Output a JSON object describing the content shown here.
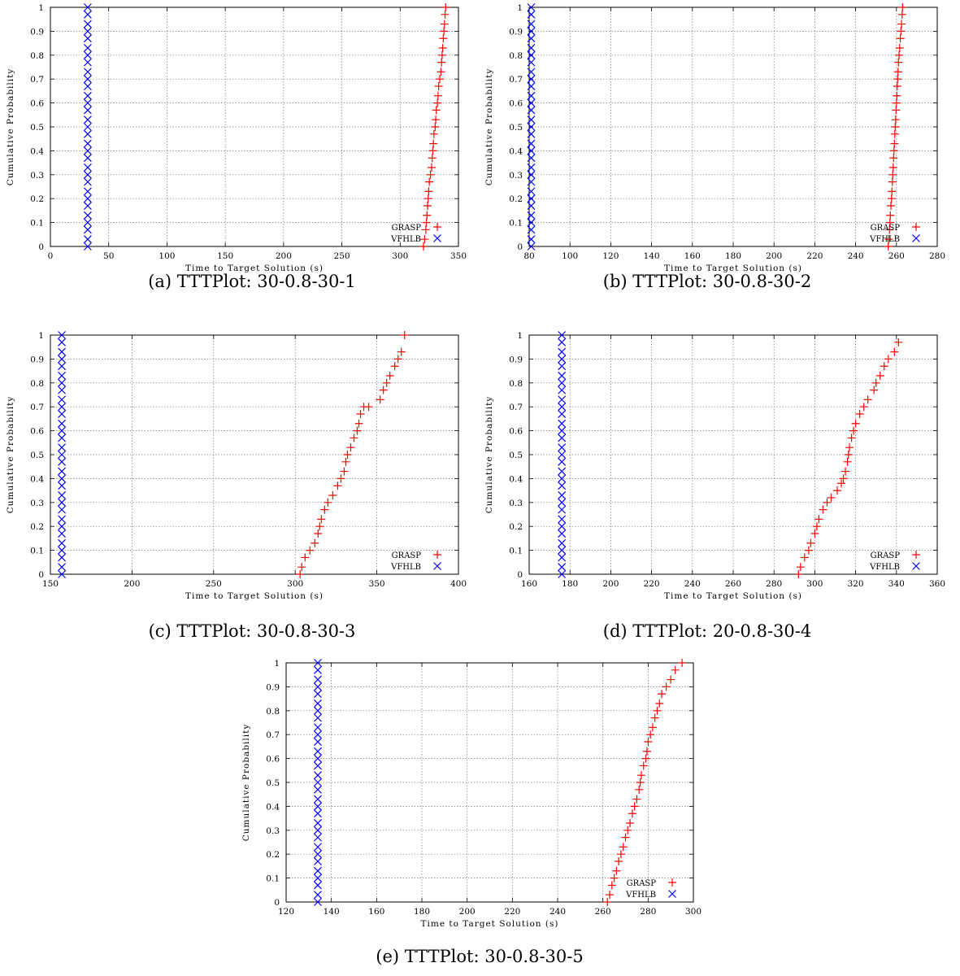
{
  "chart_data": [
    {
      "type": "scatter",
      "caption": "(a) TTTPlot: 30-0.8-30-1",
      "xlabel": "Time to Target Solution (s)",
      "ylabel": "Cumulative Probability",
      "xlim": [
        0,
        350
      ],
      "ylim": [
        0,
        1
      ],
      "xticks": [
        0,
        50,
        100,
        150,
        200,
        250,
        300,
        350
      ],
      "yticks": [
        0,
        0.1,
        0.2,
        0.3,
        0.4,
        0.5,
        0.6,
        0.7,
        0.8,
        0.9,
        1
      ],
      "grid": true,
      "legend": "bottom-right",
      "series": [
        {
          "name": "GRASP",
          "color": "#ff0000",
          "marker": "plus",
          "x": [
            320,
            321,
            322,
            322.5,
            323,
            323.5,
            324,
            324.5,
            325,
            326,
            327,
            327.5,
            328,
            328.5,
            329,
            330,
            330.5,
            331,
            332,
            332.5,
            333,
            334,
            335,
            335.5,
            336,
            336.5,
            337,
            337.5,
            338,
            338.5,
            339
          ],
          "y": [
            0.0,
            0.03,
            0.07,
            0.1,
            0.13,
            0.17,
            0.2,
            0.23,
            0.27,
            0.3,
            0.33,
            0.37,
            0.4,
            0.43,
            0.47,
            0.5,
            0.53,
            0.57,
            0.6,
            0.63,
            0.67,
            0.7,
            0.73,
            0.77,
            0.8,
            0.83,
            0.87,
            0.9,
            0.93,
            0.97,
            1.0
          ]
        },
        {
          "name": "VFHLB",
          "color": "#0000ff",
          "marker": "cross",
          "x": [
            32,
            32,
            32,
            32,
            32,
            32,
            32,
            32,
            32,
            32,
            32,
            32,
            32,
            32,
            32,
            32,
            32,
            32,
            32,
            32,
            32,
            32,
            32,
            32,
            32,
            32,
            32,
            32,
            32,
            32,
            32
          ],
          "y": [
            0.0,
            0.03,
            0.07,
            0.1,
            0.13,
            0.17,
            0.2,
            0.23,
            0.27,
            0.3,
            0.33,
            0.37,
            0.4,
            0.43,
            0.47,
            0.5,
            0.53,
            0.57,
            0.6,
            0.63,
            0.67,
            0.7,
            0.73,
            0.77,
            0.8,
            0.83,
            0.87,
            0.9,
            0.93,
            0.97,
            1.0
          ]
        }
      ]
    },
    {
      "type": "scatter",
      "caption": "(b) TTTPlot: 30-0.8-30-2",
      "xlabel": "Time to Target Solution (s)",
      "ylabel": "Cumulative Probability",
      "xlim": [
        80,
        280
      ],
      "ylim": [
        0,
        1
      ],
      "xticks": [
        80,
        100,
        120,
        140,
        160,
        180,
        200,
        220,
        240,
        260,
        280
      ],
      "yticks": [
        0,
        0.1,
        0.2,
        0.3,
        0.4,
        0.5,
        0.6,
        0.7,
        0.8,
        0.9,
        1
      ],
      "grid": true,
      "legend": "bottom-right",
      "series": [
        {
          "name": "GRASP",
          "color": "#ff0000",
          "marker": "plus",
          "x": [
            256,
            256.3,
            256.6,
            256.8,
            257,
            257.3,
            257.6,
            257.8,
            258,
            258.2,
            258.4,
            258.6,
            258.8,
            259,
            259.2,
            259.4,
            259.6,
            259.8,
            260,
            260.2,
            260.4,
            260.6,
            260.8,
            261,
            261.3,
            261.6,
            261.9,
            262.2,
            262.5,
            262.8,
            263
          ],
          "y": [
            0.0,
            0.03,
            0.07,
            0.1,
            0.13,
            0.17,
            0.2,
            0.23,
            0.27,
            0.3,
            0.33,
            0.37,
            0.4,
            0.43,
            0.47,
            0.5,
            0.53,
            0.57,
            0.6,
            0.63,
            0.67,
            0.7,
            0.73,
            0.77,
            0.8,
            0.83,
            0.87,
            0.9,
            0.93,
            0.97,
            1.0
          ]
        },
        {
          "name": "VFHLB",
          "color": "#0000ff",
          "marker": "cross",
          "x": [
            81,
            81,
            81,
            81,
            81,
            81,
            81,
            81,
            81,
            81,
            81,
            81,
            81,
            81,
            81,
            81,
            81,
            81,
            81,
            81,
            81,
            81,
            81,
            81,
            81,
            81,
            81,
            81,
            81,
            81,
            81
          ],
          "y": [
            0.0,
            0.03,
            0.07,
            0.1,
            0.13,
            0.17,
            0.2,
            0.23,
            0.27,
            0.3,
            0.33,
            0.37,
            0.4,
            0.43,
            0.47,
            0.5,
            0.53,
            0.57,
            0.6,
            0.63,
            0.67,
            0.7,
            0.73,
            0.77,
            0.8,
            0.83,
            0.87,
            0.9,
            0.93,
            0.97,
            1.0
          ]
        }
      ]
    },
    {
      "type": "scatter",
      "caption": "(c) TTTPlot: 30-0.8-30-3",
      "xlabel": "Time to Target Solution (s)",
      "ylabel": "Cumulative Probability",
      "xlim": [
        150,
        400
      ],
      "ylim": [
        0,
        1
      ],
      "xticks": [
        150,
        200,
        250,
        300,
        350,
        400
      ],
      "yticks": [
        0,
        0.1,
        0.2,
        0.3,
        0.4,
        0.5,
        0.6,
        0.7,
        0.8,
        0.9,
        1
      ],
      "grid": true,
      "legend": "bottom-right",
      "series": [
        {
          "name": "GRASP",
          "color": "#ff0000",
          "marker": "plus",
          "x": [
            303,
            304,
            306,
            309,
            312,
            314,
            315,
            316,
            318,
            320,
            323,
            326,
            328,
            330,
            331,
            332,
            334,
            336,
            338,
            339,
            340,
            342,
            345,
            352,
            354,
            356,
            358,
            361,
            363,
            365,
            367
          ],
          "y": [
            0.0,
            0.03,
            0.07,
            0.1,
            0.13,
            0.17,
            0.2,
            0.23,
            0.27,
            0.3,
            0.33,
            0.37,
            0.4,
            0.43,
            0.47,
            0.5,
            0.53,
            0.57,
            0.6,
            0.63,
            0.67,
            0.7,
            0.7,
            0.73,
            0.77,
            0.8,
            0.83,
            0.87,
            0.9,
            0.93,
            1.0
          ]
        },
        {
          "name": "VFHLB",
          "color": "#0000ff",
          "marker": "cross",
          "x": [
            157,
            157,
            157,
            157,
            157,
            157,
            157,
            157,
            157,
            157,
            157,
            157,
            157,
            157,
            157,
            157,
            157,
            157,
            157,
            157,
            157,
            157,
            157,
            157,
            157,
            157,
            157,
            157,
            157,
            157,
            157
          ],
          "y": [
            0.0,
            0.03,
            0.07,
            0.1,
            0.13,
            0.17,
            0.2,
            0.23,
            0.27,
            0.3,
            0.33,
            0.37,
            0.4,
            0.43,
            0.47,
            0.5,
            0.53,
            0.57,
            0.6,
            0.63,
            0.67,
            0.7,
            0.73,
            0.77,
            0.8,
            0.83,
            0.87,
            0.9,
            0.93,
            0.97,
            1.0
          ]
        }
      ]
    },
    {
      "type": "scatter",
      "caption": "(d) TTTPlot: 20-0.8-30-4",
      "xlabel": "Time to Target Solution (s)",
      "ylabel": "Cumulative Probability",
      "xlim": [
        160,
        360
      ],
      "ylim": [
        0,
        1
      ],
      "xticks": [
        160,
        180,
        200,
        220,
        240,
        260,
        280,
        300,
        320,
        340,
        360
      ],
      "yticks": [
        0,
        0.1,
        0.2,
        0.3,
        0.4,
        0.5,
        0.6,
        0.7,
        0.8,
        0.9,
        1
      ],
      "grid": true,
      "legend": "bottom-right",
      "series": [
        {
          "name": "GRASP",
          "color": "#ff0000",
          "marker": "plus",
          "x": [
            292,
            293,
            295,
            297,
            298,
            300,
            301,
            302,
            304,
            306,
            308,
            311,
            313,
            314,
            315,
            316,
            316.5,
            317,
            318,
            319,
            320,
            322,
            324,
            326,
            329,
            330,
            332,
            334,
            336,
            339,
            341
          ],
          "y": [
            0.0,
            0.03,
            0.07,
            0.1,
            0.13,
            0.17,
            0.2,
            0.23,
            0.27,
            0.3,
            0.32,
            0.35,
            0.38,
            0.4,
            0.43,
            0.47,
            0.5,
            0.53,
            0.57,
            0.6,
            0.63,
            0.67,
            0.7,
            0.73,
            0.77,
            0.8,
            0.83,
            0.87,
            0.9,
            0.93,
            0.97
          ]
        },
        {
          "name": "VFHLB",
          "color": "#0000ff",
          "marker": "cross",
          "x": [
            176,
            176,
            176,
            176,
            176,
            176,
            176,
            176,
            176,
            176,
            176,
            176,
            176,
            176,
            176,
            176,
            176,
            176,
            176,
            176,
            176,
            176,
            176,
            176,
            176,
            176,
            176,
            176,
            176,
            176,
            176
          ],
          "y": [
            0.0,
            0.03,
            0.07,
            0.1,
            0.13,
            0.17,
            0.2,
            0.23,
            0.27,
            0.3,
            0.33,
            0.37,
            0.4,
            0.43,
            0.47,
            0.5,
            0.53,
            0.57,
            0.6,
            0.63,
            0.67,
            0.7,
            0.73,
            0.77,
            0.8,
            0.83,
            0.87,
            0.9,
            0.93,
            0.97,
            1.0
          ]
        }
      ]
    },
    {
      "type": "scatter",
      "caption": "(e) TTTPlot: 30-0.8-30-5",
      "xlabel": "Time to Target Solution (s)",
      "ylabel": "Cumulative Probability",
      "xlim": [
        120,
        300
      ],
      "ylim": [
        0,
        1
      ],
      "xticks": [
        120,
        140,
        160,
        180,
        200,
        220,
        240,
        260,
        280,
        300
      ],
      "yticks": [
        0,
        0.1,
        0.2,
        0.3,
        0.4,
        0.5,
        0.6,
        0.7,
        0.8,
        0.9,
        1
      ],
      "grid": true,
      "legend": "bottom-right",
      "series": [
        {
          "name": "GRASP",
          "color": "#ff0000",
          "marker": "plus",
          "x": [
            262,
            263,
            264,
            265,
            266,
            267,
            268,
            269,
            270,
            271,
            272,
            273,
            274,
            275,
            276,
            276.5,
            277,
            278,
            279,
            279.5,
            280,
            281,
            282,
            283,
            284,
            285,
            286,
            288,
            290,
            292,
            295
          ],
          "y": [
            0.0,
            0.03,
            0.07,
            0.1,
            0.13,
            0.17,
            0.2,
            0.23,
            0.27,
            0.3,
            0.33,
            0.37,
            0.4,
            0.43,
            0.47,
            0.5,
            0.53,
            0.57,
            0.6,
            0.63,
            0.67,
            0.7,
            0.73,
            0.77,
            0.8,
            0.83,
            0.87,
            0.9,
            0.93,
            0.97,
            1.0
          ]
        },
        {
          "name": "VFHLB",
          "color": "#0000ff",
          "marker": "cross",
          "x": [
            134,
            134,
            134,
            134,
            134,
            134,
            134,
            134,
            134,
            134,
            134,
            134,
            134,
            134,
            134,
            134,
            134,
            134,
            134,
            134,
            134,
            134,
            134,
            134,
            134,
            134,
            134,
            134,
            134,
            134,
            134
          ],
          "y": [
            0.0,
            0.03,
            0.07,
            0.1,
            0.13,
            0.17,
            0.2,
            0.23,
            0.27,
            0.3,
            0.33,
            0.37,
            0.4,
            0.43,
            0.47,
            0.5,
            0.53,
            0.57,
            0.6,
            0.63,
            0.67,
            0.7,
            0.73,
            0.77,
            0.8,
            0.83,
            0.87,
            0.9,
            0.93,
            0.97,
            1.0
          ]
        }
      ]
    }
  ]
}
